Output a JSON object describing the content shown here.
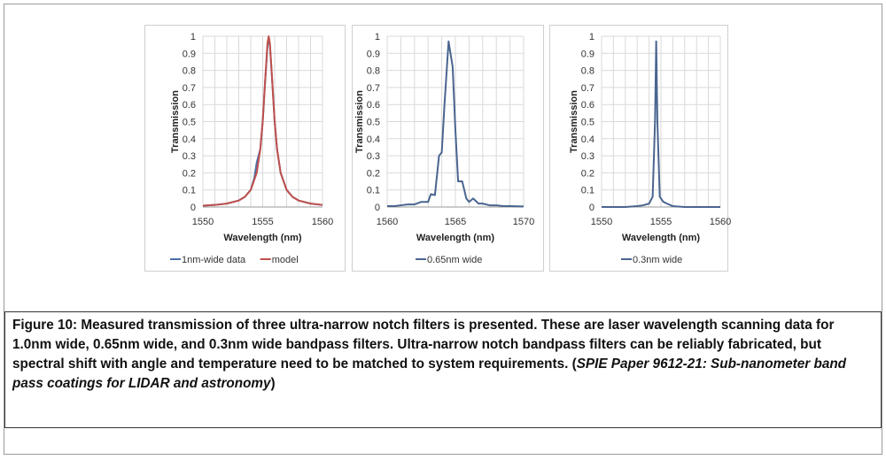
{
  "chart_data": [
    {
      "type": "line",
      "title": "",
      "xlabel": "Wavelength (nm)",
      "ylabel": "Transmission",
      "xlim": [
        1550,
        1560
      ],
      "ylim": [
        0,
        1
      ],
      "xticks": [
        "1550",
        "1555",
        "1560"
      ],
      "yticks": [
        "0",
        "0.1",
        "0.2",
        "0.3",
        "0.4",
        "0.5",
        "0.6",
        "0.7",
        "0.8",
        "0.9",
        "1"
      ],
      "grid": true,
      "legend": "bottom",
      "series": [
        {
          "name": "1nm-wide data",
          "color": "#4a6fa5",
          "x": [
            1550,
            1551,
            1552,
            1553,
            1553.5,
            1554,
            1554.3,
            1554.5,
            1554.8,
            1555,
            1555.2,
            1555.4,
            1555.5,
            1555.6,
            1555.8,
            1556,
            1556.2,
            1556.5,
            1557,
            1557.5,
            1558,
            1559,
            1560
          ],
          "y": [
            0.008,
            0.012,
            0.02,
            0.038,
            0.059,
            0.1,
            0.17,
            0.26,
            0.34,
            0.5,
            0.73,
            0.94,
            0.99,
            0.95,
            0.73,
            0.5,
            0.34,
            0.2,
            0.1,
            0.059,
            0.038,
            0.02,
            0.012
          ]
        },
        {
          "name": "model",
          "color": "#c0504d",
          "x": [
            1550,
            1551,
            1552,
            1553,
            1553.5,
            1554,
            1554.5,
            1554.8,
            1555,
            1555.2,
            1555.4,
            1555.5,
            1555.6,
            1555.8,
            1556,
            1556.2,
            1556.5,
            1557,
            1557.5,
            1558,
            1559,
            1560
          ],
          "y": [
            0.008,
            0.012,
            0.02,
            0.038,
            0.059,
            0.1,
            0.2,
            0.338,
            0.5,
            0.735,
            0.96,
            1,
            0.96,
            0.735,
            0.5,
            0.338,
            0.2,
            0.1,
            0.059,
            0.038,
            0.02,
            0.012
          ]
        }
      ]
    },
    {
      "type": "line",
      "title": "",
      "xlabel": "Wavelength (nm)",
      "ylabel": "Transmission",
      "xlim": [
        1560,
        1570
      ],
      "ylim": [
        0,
        1
      ],
      "xticks": [
        "1560",
        "1565",
        "1570"
      ],
      "yticks": [
        "0",
        "0.1",
        "0.2",
        "0.3",
        "0.4",
        "0.5",
        "0.6",
        "0.7",
        "0.8",
        "0.9",
        "1"
      ],
      "grid": true,
      "legend": "bottom",
      "series": [
        {
          "name": "0.65nm wide",
          "color": "#4a6590",
          "x": [
            1560,
            1560.5,
            1561,
            1561.5,
            1562,
            1562.5,
            1563,
            1563.2,
            1563.5,
            1563.8,
            1564,
            1564.2,
            1564.5,
            1564.8,
            1565,
            1565.2,
            1565.5,
            1565.8,
            1566,
            1566.3,
            1566.7,
            1567,
            1567.5,
            1568,
            1568.5,
            1569,
            1570
          ],
          "y": [
            0.005,
            0.005,
            0.01,
            0.015,
            0.015,
            0.03,
            0.03,
            0.075,
            0.07,
            0.3,
            0.32,
            0.6,
            0.97,
            0.82,
            0.45,
            0.15,
            0.15,
            0.05,
            0.03,
            0.05,
            0.02,
            0.02,
            0.01,
            0.01,
            0.005,
            0.005,
            0.003
          ]
        }
      ]
    },
    {
      "type": "line",
      "title": "",
      "xlabel": "Wavelength (nm)",
      "ylabel": "Transmission",
      "xlim": [
        1550,
        1560
      ],
      "ylim": [
        0,
        1
      ],
      "xticks": [
        "1550",
        "1555",
        "1560"
      ],
      "yticks": [
        "0",
        "0.1",
        "0.2",
        "0.3",
        "0.4",
        "0.5",
        "0.6",
        "0.7",
        "0.8",
        "0.9",
        "1"
      ],
      "grid": true,
      "legend": "bottom",
      "series": [
        {
          "name": "0.3nm wide",
          "color": "#4a6590",
          "x": [
            1550,
            1552,
            1553,
            1553.5,
            1554,
            1554.3,
            1554.5,
            1554.6,
            1554.7,
            1554.9,
            1555.2,
            1555.5,
            1556,
            1557,
            1560
          ],
          "y": [
            0,
            0,
            0.005,
            0.01,
            0.02,
            0.06,
            0.5,
            0.97,
            0.5,
            0.06,
            0.03,
            0.02,
            0.005,
            0,
            0
          ]
        }
      ]
    }
  ],
  "caption": {
    "label": "Figure 10:",
    "text": " Measured transmission of three ultra-narrow notch filters is presented. These are laser wavelength scanning data for 1.0nm wide, 0.65nm wide, and 0.3nm wide bandpass filters. Ultra-narrow notch bandpass filters can be reliably fabricated, but spectral shift with angle and temperature need to be matched to system requirements. (",
    "citation": "SPIE Paper 9612-21: Sub-nanometer band pass coatings for LIDAR and astronomy",
    "close": ")"
  }
}
